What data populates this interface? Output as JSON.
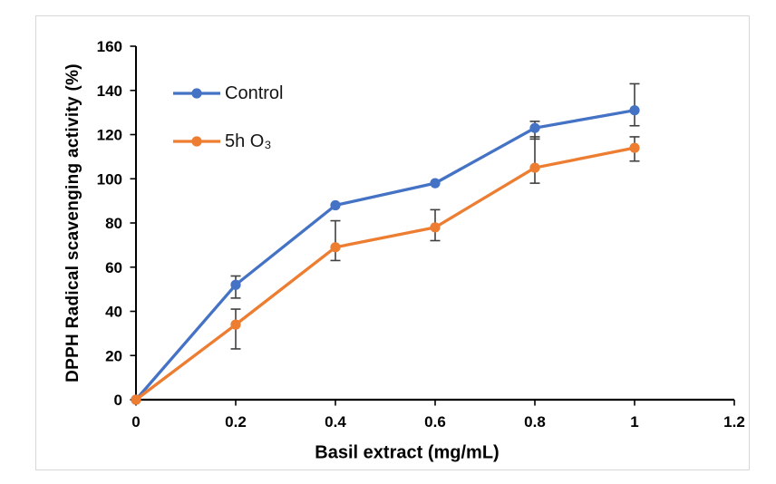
{
  "chart_data": {
    "type": "line",
    "title": "",
    "xlabel": "Basil extract (mg/mL)",
    "ylabel": "DPPH Radical scavenging activity (%)",
    "xlim": [
      0,
      1.2
    ],
    "ylim": [
      0,
      160
    ],
    "xtick_values": [
      0,
      0.2,
      0.4,
      0.6,
      0.8,
      1,
      1.2
    ],
    "xtick_labels": [
      "0",
      "0.2",
      "0.4",
      "0.6",
      "0.8",
      "1",
      "1.2"
    ],
    "ytick_values": [
      0,
      20,
      40,
      60,
      80,
      100,
      120,
      140,
      160
    ],
    "ytick_labels": [
      "0",
      "20",
      "40",
      "60",
      "80",
      "100",
      "120",
      "140",
      "160"
    ],
    "grid": false,
    "legend_position": "upper-left-inside",
    "x": [
      0,
      0.2,
      0.4,
      0.6,
      0.8,
      1
    ],
    "series": [
      {
        "name": "Control",
        "color": "#4472C4",
        "values": [
          0,
          52,
          88,
          98,
          123,
          131
        ],
        "error_bars": [
          null,
          [
            56,
            46
          ],
          null,
          null,
          [
            126,
            118
          ],
          [
            143,
            124
          ]
        ]
      },
      {
        "name": "5h O₃",
        "color": "#ED7D31",
        "values": [
          0,
          34,
          69,
          78,
          105,
          114
        ],
        "error_bars": [
          null,
          [
            41,
            23
          ],
          [
            81,
            63
          ],
          [
            86,
            72
          ],
          [
            119,
            98
          ],
          [
            119,
            108
          ]
        ]
      }
    ],
    "error_bar_color": "#404040",
    "axis_color": "#000000",
    "text_color": "#000000"
  },
  "figure": {
    "background": "#FFFFFF",
    "border_color": "#D8D8D8"
  }
}
